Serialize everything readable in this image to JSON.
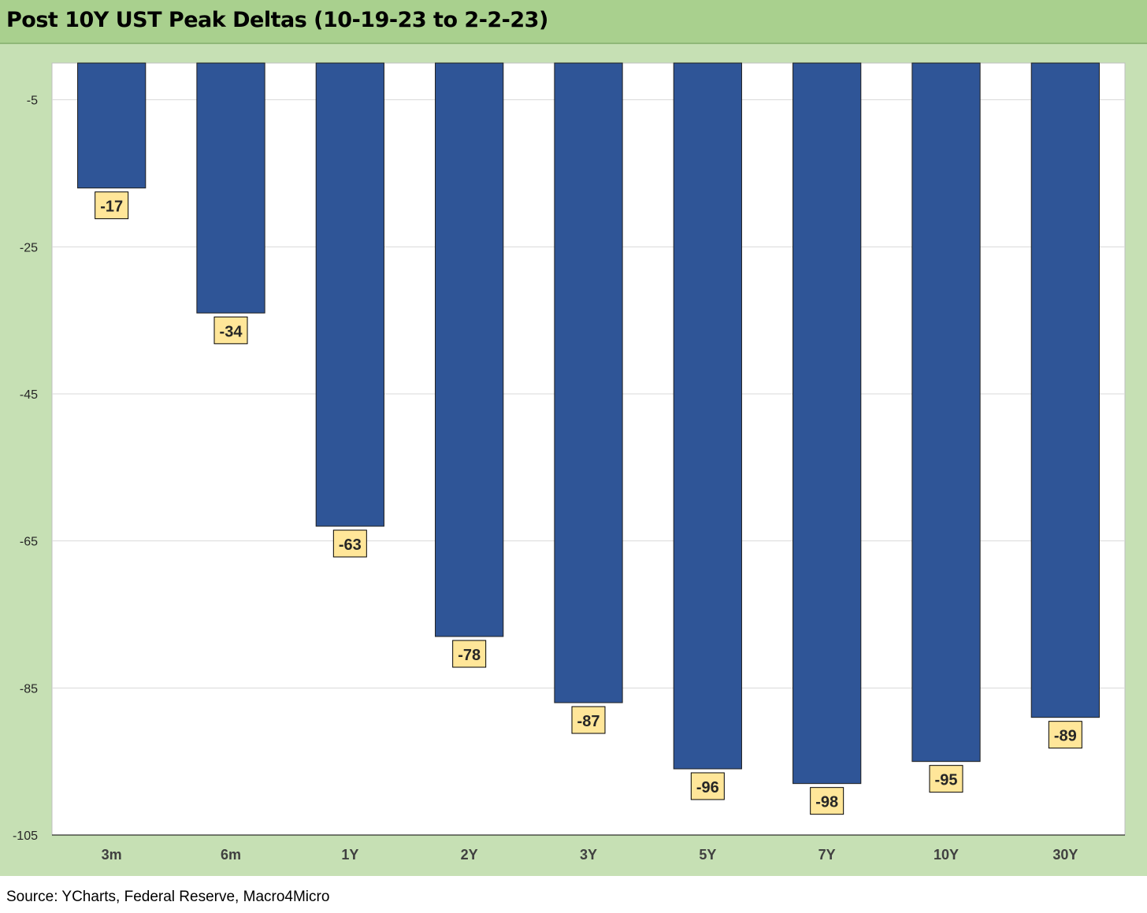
{
  "title": "Post 10Y UST Peak Deltas (10-19-23 to 2-2-23)",
  "source": "Source: YCharts, Federal Reserve, Macro4Micro",
  "colors": {
    "title_bg": "#a9d08e",
    "chart_bg": "#c6e0b4",
    "plot_bg": "#ffffff",
    "bar_fill": "#2f5597",
    "bar_stroke": "#1f1f1f",
    "label_bg": "#ffe699",
    "gridline": "#d9d9d9"
  },
  "chart_data": {
    "type": "bar",
    "title": "Post 10Y UST Peak Deltas (10-19-23 to 2-2-23)",
    "categories": [
      "3m",
      "6m",
      "1Y",
      "2Y",
      "3Y",
      "5Y",
      "7Y",
      "10Y",
      "30Y"
    ],
    "values": [
      -17,
      -34,
      -63,
      -78,
      -87,
      -96,
      -98,
      -95,
      -89
    ],
    "data_labels": [
      "-17",
      "-34",
      "-63",
      "-78",
      "-87",
      "-96",
      "-98",
      "-95",
      "-89"
    ],
    "ylim": [
      -105,
      0
    ],
    "yticks": [
      -5,
      -25,
      -45,
      -65,
      -85,
      -105
    ],
    "ytick_labels": [
      "-5",
      "-25",
      "-45",
      "-65",
      "-85",
      "-105"
    ],
    "grid": true,
    "legend": "none",
    "xlabel": "",
    "ylabel": ""
  }
}
